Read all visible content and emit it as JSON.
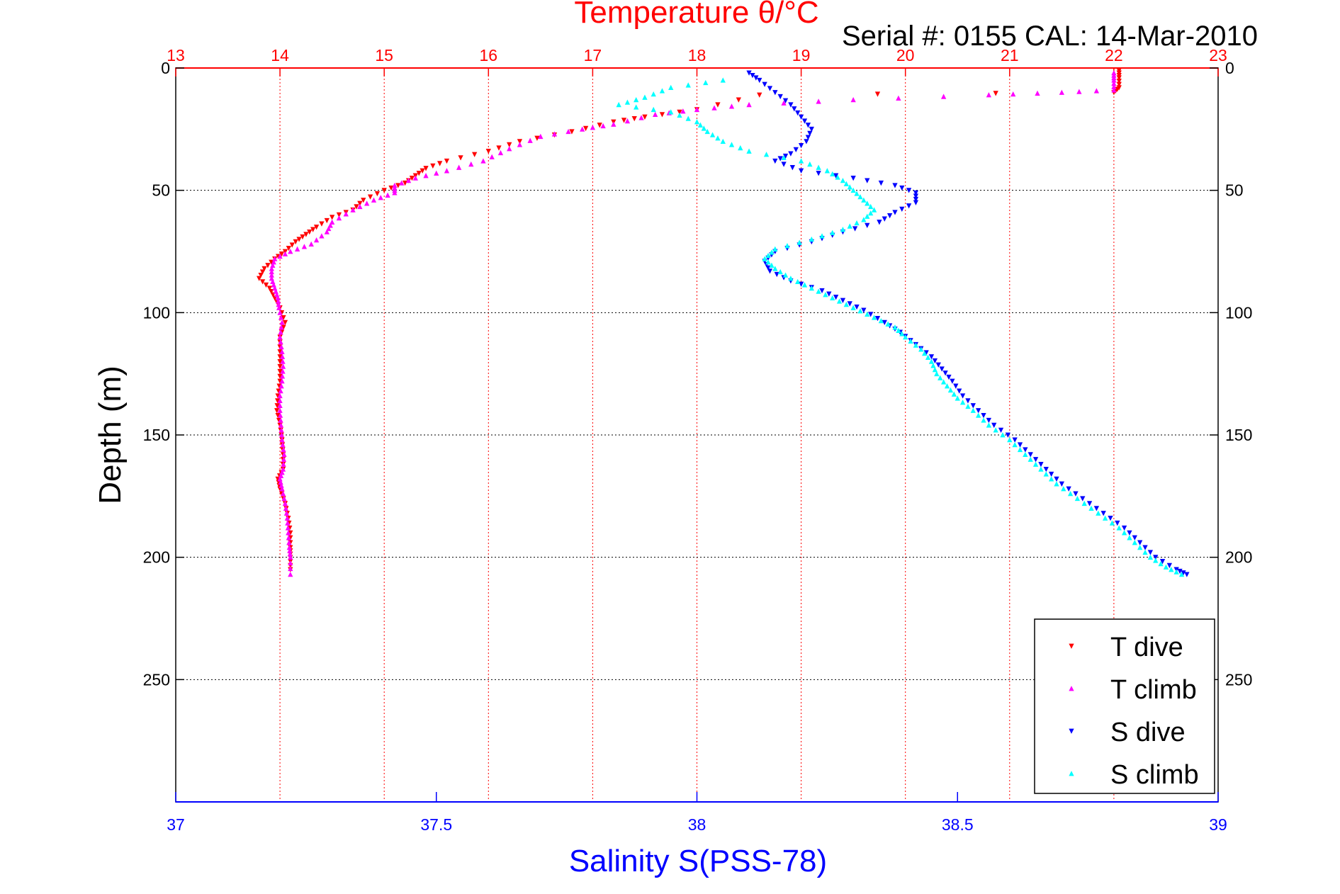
{
  "chart_data": {
    "type": "scatter",
    "title": "Temperature θ/°C",
    "subtitle": "Serial #: 0155  CAL: 14-Mar-2010",
    "xlabel": "Salinity S(PSS-78)",
    "ylabel": "Depth (m)",
    "top_axis": {
      "range": [
        13,
        23
      ],
      "ticks": [
        "13",
        "14",
        "15",
        "16",
        "17",
        "18",
        "19",
        "20",
        "21",
        "22",
        "23"
      ],
      "color": "#ff0000"
    },
    "bottom_axis": {
      "range": [
        37,
        39
      ],
      "ticks": [
        "37",
        "37.5",
        "38",
        "38.5",
        "39"
      ],
      "color": "#0000ff"
    },
    "y_axis": {
      "range": [
        0,
        300
      ],
      "reversed": true,
      "ticks": [
        "0",
        "50",
        "100",
        "150",
        "200",
        "250"
      ]
    },
    "grid": true,
    "legend_position": "bottom-right",
    "series": [
      {
        "name": "T dive",
        "axis": "top",
        "color": "#ff0000",
        "marker": "triangle-down",
        "points": [
          [
            22.05,
            1
          ],
          [
            22.05,
            4
          ],
          [
            22.05,
            8
          ],
          [
            22.0,
            10
          ],
          [
            18.6,
            11
          ],
          [
            18.0,
            17
          ],
          [
            17.5,
            20
          ],
          [
            17.2,
            22
          ],
          [
            16.8,
            26
          ],
          [
            16.3,
            30
          ],
          [
            16.0,
            34
          ],
          [
            15.6,
            38
          ],
          [
            15.4,
            41
          ],
          [
            15.3,
            44
          ],
          [
            15.2,
            47
          ],
          [
            15.0,
            50
          ],
          [
            14.8,
            54
          ],
          [
            14.7,
            58
          ],
          [
            14.5,
            61
          ],
          [
            14.35,
            65
          ],
          [
            14.25,
            68
          ],
          [
            14.15,
            71
          ],
          [
            14.05,
            75
          ],
          [
            13.95,
            78
          ],
          [
            13.85,
            82
          ],
          [
            13.8,
            86
          ],
          [
            13.9,
            90
          ],
          [
            13.95,
            94
          ],
          [
            14.0,
            98
          ],
          [
            14.05,
            104
          ],
          [
            14.0,
            110
          ],
          [
            14.0,
            116
          ],
          [
            14.0,
            122
          ],
          [
            14.0,
            128
          ],
          [
            13.98,
            134
          ],
          [
            13.97,
            140
          ],
          [
            14.0,
            146
          ],
          [
            14.02,
            152
          ],
          [
            14.03,
            158
          ],
          [
            14.03,
            164
          ],
          [
            13.98,
            168
          ],
          [
            14.0,
            172
          ],
          [
            14.05,
            178
          ],
          [
            14.08,
            184
          ],
          [
            14.1,
            190
          ],
          [
            14.1,
            196
          ],
          [
            14.1,
            200
          ],
          [
            14.1,
            205
          ]
        ]
      },
      {
        "name": "T climb",
        "axis": "top",
        "color": "#ff00ff",
        "marker": "triangle-up",
        "points": [
          [
            22.0,
            2
          ],
          [
            22.0,
            5
          ],
          [
            22.0,
            9
          ],
          [
            21.5,
            10
          ],
          [
            20.8,
            11
          ],
          [
            19.5,
            13
          ],
          [
            18.5,
            15
          ],
          [
            18.0,
            17
          ],
          [
            17.6,
            19
          ],
          [
            17.2,
            23
          ],
          [
            16.9,
            25
          ],
          [
            16.5,
            28
          ],
          [
            16.2,
            33
          ],
          [
            15.95,
            38
          ],
          [
            15.6,
            42
          ],
          [
            15.3,
            45
          ],
          [
            15.1,
            48
          ],
          [
            15.1,
            51
          ],
          [
            14.9,
            54
          ],
          [
            14.7,
            58
          ],
          [
            14.5,
            63
          ],
          [
            14.45,
            67
          ],
          [
            14.3,
            72
          ],
          [
            14.1,
            75
          ],
          [
            13.95,
            78
          ],
          [
            13.92,
            82
          ],
          [
            13.92,
            86
          ],
          [
            13.95,
            90
          ],
          [
            13.98,
            94
          ],
          [
            13.99,
            98
          ],
          [
            14.02,
            104
          ],
          [
            14.0,
            110
          ],
          [
            14.02,
            116
          ],
          [
            14.03,
            122
          ],
          [
            14.02,
            128
          ],
          [
            14.0,
            134
          ],
          [
            14.0,
            140
          ],
          [
            14.01,
            146
          ],
          [
            14.02,
            152
          ],
          [
            14.04,
            158
          ],
          [
            14.03,
            164
          ],
          [
            14.0,
            168
          ],
          [
            14.02,
            172
          ],
          [
            14.05,
            178
          ],
          [
            14.07,
            184
          ],
          [
            14.08,
            190
          ],
          [
            14.09,
            196
          ],
          [
            14.1,
            200
          ],
          [
            14.1,
            207
          ]
        ]
      },
      {
        "name": "S dive",
        "axis": "bottom",
        "color": "#0000ff",
        "marker": "triangle-down",
        "points": [
          [
            38.1,
            2
          ],
          [
            38.12,
            5
          ],
          [
            38.15,
            10
          ],
          [
            38.18,
            15
          ],
          [
            38.2,
            20
          ],
          [
            38.22,
            25
          ],
          [
            38.21,
            30
          ],
          [
            38.18,
            35
          ],
          [
            38.15,
            38
          ],
          [
            38.2,
            42
          ],
          [
            38.3,
            45
          ],
          [
            38.38,
            48
          ],
          [
            38.42,
            51
          ],
          [
            38.42,
            55
          ],
          [
            38.38,
            59
          ],
          [
            38.35,
            63
          ],
          [
            38.28,
            67
          ],
          [
            38.22,
            71
          ],
          [
            38.15,
            75
          ],
          [
            38.13,
            79
          ],
          [
            38.14,
            83
          ],
          [
            38.18,
            87
          ],
          [
            38.24,
            91
          ],
          [
            38.28,
            95
          ],
          [
            38.32,
            99
          ],
          [
            38.36,
            104
          ],
          [
            38.39,
            108
          ],
          [
            38.42,
            113
          ],
          [
            38.45,
            118
          ],
          [
            38.47,
            123
          ],
          [
            38.49,
            128
          ],
          [
            38.51,
            134
          ],
          [
            38.54,
            140
          ],
          [
            38.57,
            146
          ],
          [
            38.61,
            152
          ],
          [
            38.64,
            158
          ],
          [
            38.67,
            164
          ],
          [
            38.7,
            170
          ],
          [
            38.74,
            176
          ],
          [
            38.78,
            182
          ],
          [
            38.82,
            188
          ],
          [
            38.85,
            194
          ],
          [
            38.88,
            200
          ],
          [
            38.92,
            205
          ],
          [
            38.94,
            207
          ]
        ]
      },
      {
        "name": "S climb",
        "axis": "bottom",
        "color": "#00ffff",
        "marker": "triangle-up",
        "points": [
          [
            38.05,
            5
          ],
          [
            37.95,
            8
          ],
          [
            37.9,
            12
          ],
          [
            37.85,
            15
          ],
          [
            37.95,
            18
          ],
          [
            38.0,
            22
          ],
          [
            38.02,
            26
          ],
          [
            38.05,
            30
          ],
          [
            38.1,
            34
          ],
          [
            38.2,
            38
          ],
          [
            38.25,
            42
          ],
          [
            38.28,
            46
          ],
          [
            38.3,
            50
          ],
          [
            38.32,
            54
          ],
          [
            38.34,
            58
          ],
          [
            38.32,
            62
          ],
          [
            38.28,
            66
          ],
          [
            38.22,
            70
          ],
          [
            38.15,
            74
          ],
          [
            38.13,
            78
          ],
          [
            38.15,
            82
          ],
          [
            38.18,
            86
          ],
          [
            38.22,
            90
          ],
          [
            38.26,
            94
          ],
          [
            38.3,
            98
          ],
          [
            38.34,
            102
          ],
          [
            38.38,
            106
          ],
          [
            38.4,
            110
          ],
          [
            38.43,
            115
          ],
          [
            38.45,
            120
          ],
          [
            38.46,
            125
          ],
          [
            38.48,
            130
          ],
          [
            38.5,
            135
          ],
          [
            38.53,
            140
          ],
          [
            38.56,
            146
          ],
          [
            38.6,
            152
          ],
          [
            38.63,
            158
          ],
          [
            38.66,
            164
          ],
          [
            38.69,
            170
          ],
          [
            38.73,
            176
          ],
          [
            38.77,
            182
          ],
          [
            38.81,
            188
          ],
          [
            38.84,
            194
          ],
          [
            38.87,
            200
          ],
          [
            38.9,
            204
          ],
          [
            38.93,
            207
          ]
        ]
      }
    ]
  }
}
